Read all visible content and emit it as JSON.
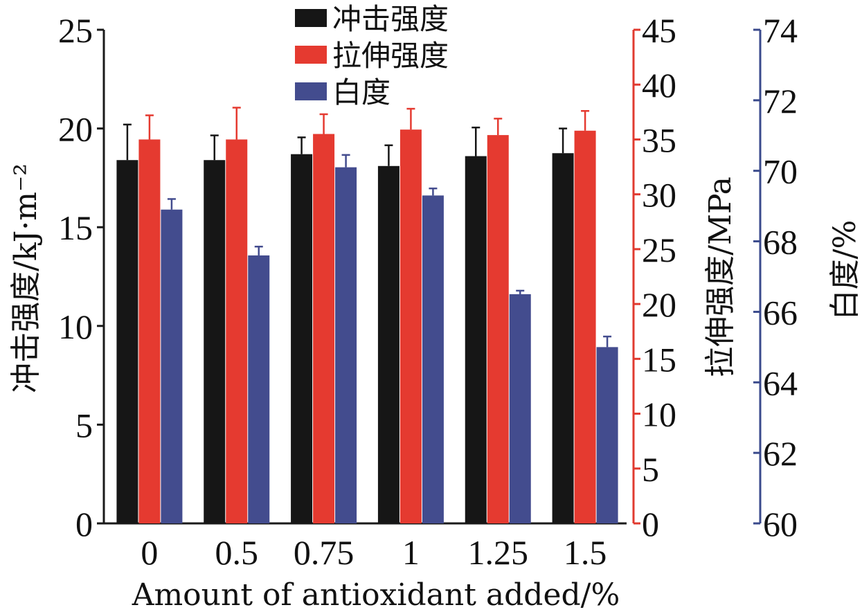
{
  "chart_data": {
    "type": "bar",
    "categories": [
      "0",
      "0.5",
      "0.75",
      "1",
      "1.25",
      "1.5"
    ],
    "xlabel": "Amount of antioxidant added/%",
    "axes": {
      "left": {
        "label": "冲击强度/kJ·m⁻²",
        "ylim": [
          0,
          25
        ],
        "ticks": [
          0,
          5,
          10,
          15,
          20,
          25
        ],
        "color": "#1a1a1a"
      },
      "right1": {
        "label": "拉伸强度/MPa",
        "ylim": [
          0,
          45
        ],
        "ticks": [
          0,
          5,
          10,
          15,
          20,
          25,
          30,
          35,
          40,
          45
        ],
        "color": "#e03a2f"
      },
      "right2": {
        "label": "白度/%",
        "ylim": [
          60,
          74
        ],
        "ticks": [
          60,
          62,
          64,
          66,
          68,
          70,
          72,
          74
        ],
        "color": "#3a4a8c"
      }
    },
    "series": [
      {
        "name": "冲击强度",
        "axis": "left",
        "color": "#161616",
        "values": [
          18.4,
          18.4,
          18.7,
          18.1,
          18.6,
          18.75
        ],
        "errors": [
          1.8,
          1.25,
          0.85,
          1.05,
          1.45,
          1.25
        ]
      },
      {
        "name": "拉伸强度",
        "axis": "right1",
        "color": "#e53a30",
        "values": [
          35.0,
          35.0,
          35.5,
          35.9,
          35.4,
          35.8
        ],
        "errors": [
          2.2,
          2.9,
          1.8,
          1.9,
          1.5,
          1.8
        ]
      },
      {
        "name": "白度",
        "axis": "right2",
        "color": "#434c8e",
        "values": [
          68.9,
          67.6,
          70.1,
          69.3,
          66.5,
          65.0
        ],
        "errors": [
          0.3,
          0.25,
          0.35,
          0.2,
          0.1,
          0.3
        ]
      }
    ],
    "legend_position": "top-center",
    "grid": false
  }
}
